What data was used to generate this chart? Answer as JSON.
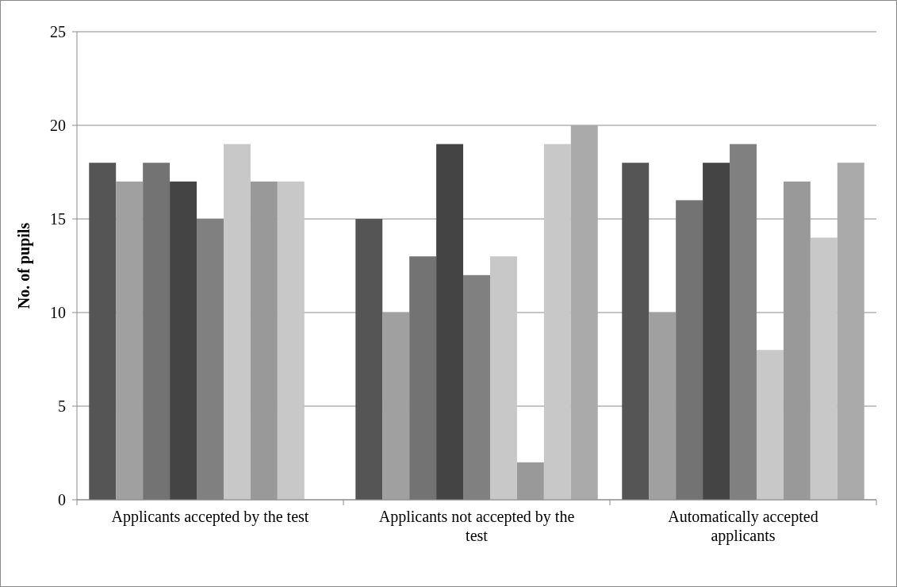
{
  "chart_data": {
    "type": "bar",
    "ylabel": "No. of pupils",
    "categories": [
      "Applicants accepted by the test",
      "Applicants not accepted by the test",
      "Automatically accepted applicants"
    ],
    "series": [
      {
        "color": "#555555",
        "values": [
          18,
          15,
          18
        ]
      },
      {
        "color": "#a0a0a0",
        "values": [
          17,
          10,
          10
        ]
      },
      {
        "color": "#737373",
        "values": [
          18,
          13,
          16
        ]
      },
      {
        "color": "#444444",
        "values": [
          17,
          19,
          18
        ]
      },
      {
        "color": "#808080",
        "values": [
          15,
          12,
          19
        ]
      },
      {
        "color": "#c8c8c8",
        "values": [
          19,
          13,
          8
        ]
      },
      {
        "color": "#999999",
        "values": [
          17,
          2,
          17
        ]
      },
      {
        "color": "#c8c8c8",
        "values": [
          17,
          19,
          14
        ]
      },
      {
        "color": "#aaaaaa",
        "values": [
          null,
          20,
          18
        ]
      }
    ],
    "ylim": [
      0,
      25
    ],
    "yticks": [
      0,
      5,
      10,
      15,
      20,
      25
    ],
    "grid": "y"
  }
}
